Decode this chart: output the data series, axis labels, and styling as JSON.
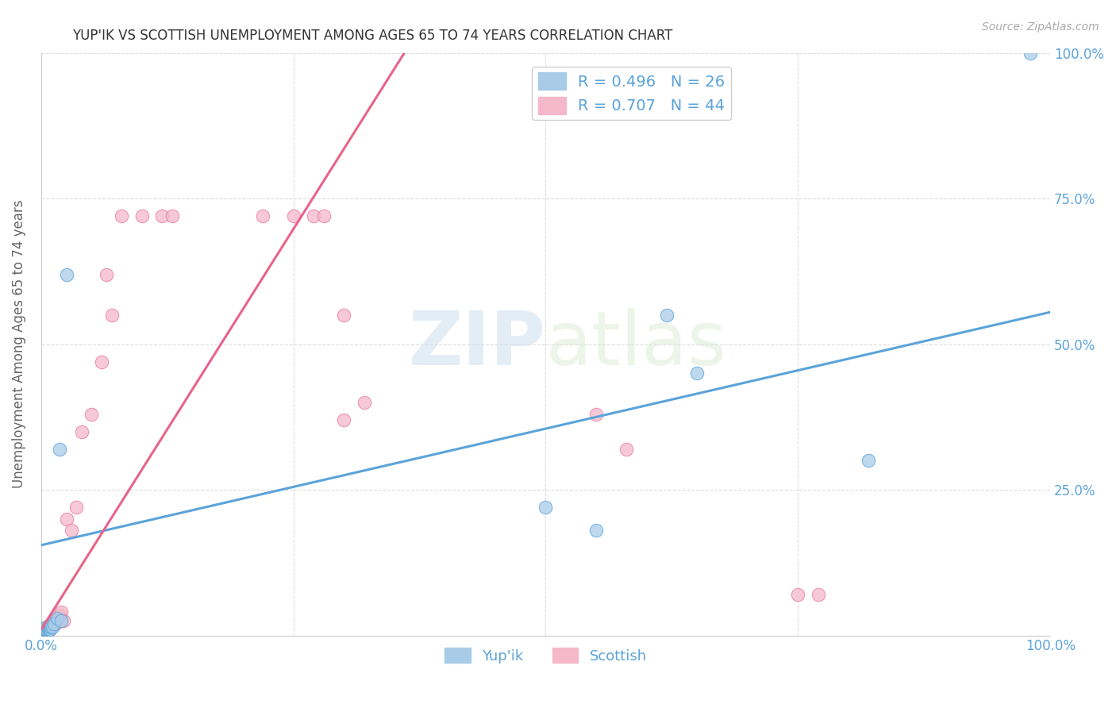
{
  "title": "YUP'IK VS SCOTTISH UNEMPLOYMENT AMONG AGES 65 TO 74 YEARS CORRELATION CHART",
  "source": "Source: ZipAtlas.com",
  "ylabel": "Unemployment Among Ages 65 to 74 years",
  "xlim": [
    0.0,
    1.0
  ],
  "ylim": [
    0.0,
    1.0
  ],
  "legend_R_blue": "R = 0.496",
  "legend_N_blue": "N = 26",
  "legend_R_pink": "R = 0.707",
  "legend_N_pink": "N = 44",
  "legend_label_blue": "Yup'ik",
  "legend_label_pink": "Scottish",
  "blue_color": "#a8cce8",
  "pink_color": "#f5b8cb",
  "blue_edge_color": "#5ba3d9",
  "pink_edge_color": "#e87aa0",
  "blue_line_color": "#5ba3d9",
  "pink_line_color": "#e8638a",
  "watermark_zip": "ZIP",
  "watermark_atlas": "atlas",
  "title_color": "#333333",
  "axis_label_color": "#5ba3d9",
  "grid_color": "#dddddd",
  "background_color": "#ffffff",
  "legend_text_color": "#5ba3d9",
  "yupik_x": [
    0.002,
    0.003,
    0.004,
    0.005,
    0.005,
    0.006,
    0.007,
    0.007,
    0.008,
    0.008,
    0.009,
    0.009,
    0.01,
    0.01,
    0.011,
    0.013,
    0.016,
    0.018,
    0.02,
    0.025,
    0.5,
    0.55,
    0.62,
    0.65,
    0.82,
    0.98
  ],
  "yupik_y": [
    0.01,
    0.01,
    0.01,
    0.015,
    0.01,
    0.01,
    0.01,
    0.015,
    0.01,
    0.015,
    0.01,
    0.015,
    0.015,
    0.02,
    0.015,
    0.02,
    0.03,
    0.32,
    0.025,
    0.62,
    0.22,
    0.18,
    0.55,
    0.45,
    0.3,
    1.0
  ],
  "scottish_x": [
    0.002,
    0.003,
    0.004,
    0.005,
    0.005,
    0.006,
    0.007,
    0.008,
    0.008,
    0.009,
    0.009,
    0.01,
    0.011,
    0.012,
    0.013,
    0.014,
    0.015,
    0.016,
    0.018,
    0.02,
    0.022,
    0.025,
    0.03,
    0.035,
    0.04,
    0.05,
    0.06,
    0.065,
    0.07,
    0.08,
    0.1,
    0.12,
    0.13,
    0.22,
    0.25,
    0.27,
    0.28,
    0.3,
    0.55,
    0.58,
    0.75,
    0.77,
    0.3,
    0.32
  ],
  "scottish_y": [
    0.01,
    0.01,
    0.01,
    0.015,
    0.01,
    0.01,
    0.01,
    0.01,
    0.015,
    0.01,
    0.015,
    0.015,
    0.02,
    0.02,
    0.025,
    0.02,
    0.025,
    0.03,
    0.035,
    0.04,
    0.025,
    0.2,
    0.18,
    0.22,
    0.35,
    0.38,
    0.47,
    0.62,
    0.55,
    0.72,
    0.72,
    0.72,
    0.72,
    0.72,
    0.72,
    0.72,
    0.72,
    0.55,
    0.38,
    0.32,
    0.07,
    0.07,
    0.37,
    0.4
  ],
  "blue_line_x": [
    0.0,
    1.0
  ],
  "blue_line_y": [
    0.155,
    0.555
  ],
  "pink_line_x": [
    0.0,
    0.36
  ],
  "pink_line_y": [
    0.01,
    1.0
  ]
}
